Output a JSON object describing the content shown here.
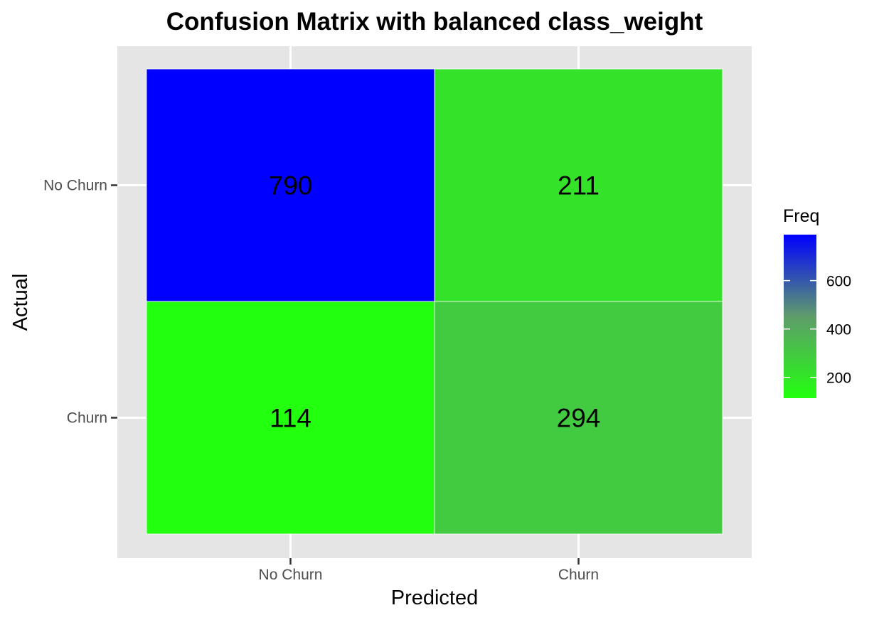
{
  "chart_data": {
    "type": "heatmap",
    "title": "Confusion Matrix with balanced class_weight",
    "xlabel": "Predicted",
    "ylabel": "Actual",
    "x_categories": [
      "No Churn",
      "Churn"
    ],
    "y_categories": [
      "No Churn",
      "Churn"
    ],
    "cells": [
      {
        "predicted": "No Churn",
        "actual": "No Churn",
        "value": 790,
        "label": "790"
      },
      {
        "predicted": "Churn",
        "actual": "No Churn",
        "value": 211,
        "label": "211"
      },
      {
        "predicted": "No Churn",
        "actual": "Churn",
        "value": 114,
        "label": "114"
      },
      {
        "predicted": "Churn",
        "actual": "Churn",
        "value": 294,
        "label": "294"
      }
    ],
    "legend": {
      "title": "Freq",
      "position": "right",
      "min": 114,
      "max": 790,
      "ticks": [
        200,
        400,
        600
      ],
      "tick_labels": [
        "200",
        "400",
        "600"
      ],
      "low_color": "#22ff0f",
      "mid_color": "#5f9c6b",
      "high_color": "#0000ff"
    },
    "panel_background": "#e5e5e5",
    "grid": true
  }
}
